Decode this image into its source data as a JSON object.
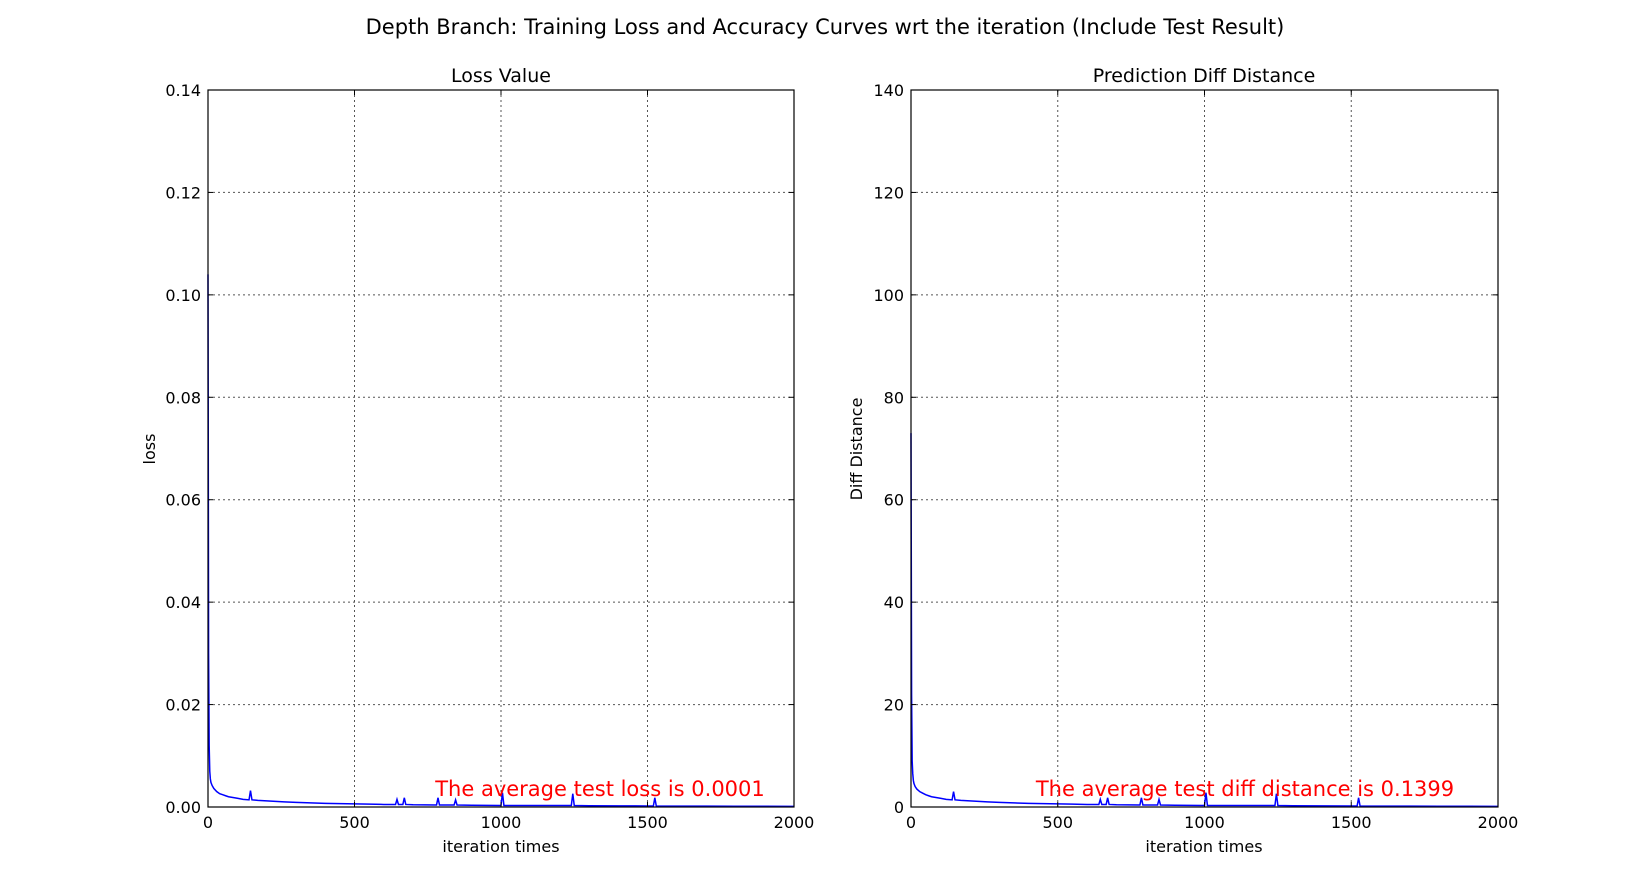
{
  "figure": {
    "suptitle": "Depth Branch: Training Loss and Accuracy Curves wrt the iteration (Include Test Result)"
  },
  "chart_data": [
    {
      "type": "line",
      "title": "Loss Value",
      "xlabel": "iteration times",
      "ylabel": "loss",
      "xlim": [
        0,
        2000
      ],
      "ylim": [
        0,
        0.14
      ],
      "xticks": [
        0,
        500,
        1000,
        1500,
        2000
      ],
      "xtick_labels": [
        "0",
        "500",
        "1000",
        "1500",
        "2000"
      ],
      "yticks": [
        0,
        0.02,
        0.04,
        0.06,
        0.08,
        0.1,
        0.12,
        0.14
      ],
      "ytick_labels": [
        "0.00",
        "0.02",
        "0.04",
        "0.06",
        "0.08",
        "0.10",
        "0.12",
        "0.14"
      ],
      "grid": true,
      "annotation": "The average test loss is 0.0001",
      "series": [
        {
          "color": "#0000ff",
          "x": [
            0,
            2,
            4,
            6,
            8,
            10,
            14,
            20,
            30,
            40,
            50,
            60,
            70,
            80,
            90,
            100,
            120,
            140,
            145,
            150,
            170,
            200,
            230,
            260,
            300,
            350,
            400,
            450,
            500,
            550,
            600,
            640,
            645,
            650,
            665,
            670,
            675,
            700,
            780,
            785,
            790,
            840,
            845,
            850,
            900,
            1000,
            1005,
            1010,
            1100,
            1200,
            1240,
            1245,
            1250,
            1300,
            1400,
            1500,
            1520,
            1525,
            1530,
            1600,
            1700,
            1800,
            1900,
            2000
          ],
          "y": [
            0.104,
            0.03,
            0.012,
            0.007,
            0.0055,
            0.0048,
            0.0042,
            0.0036,
            0.003,
            0.0026,
            0.0024,
            0.0022,
            0.002,
            0.0019,
            0.0018,
            0.0017,
            0.0015,
            0.0014,
            0.0032,
            0.0014,
            0.0013,
            0.0012,
            0.0011,
            0.001,
            0.0009,
            0.0008,
            0.0007,
            0.00065,
            0.0006,
            0.00055,
            0.0005,
            0.0005,
            0.0015,
            0.0005,
            0.0005,
            0.0018,
            0.0005,
            0.00045,
            0.0004,
            0.0018,
            0.0004,
            0.0004,
            0.0014,
            0.0004,
            0.00035,
            0.0003,
            0.0028,
            0.0003,
            0.0003,
            0.0003,
            0.0003,
            0.0026,
            0.0003,
            0.00025,
            0.00022,
            0.0002,
            0.0002,
            0.0018,
            0.0002,
            0.00018,
            0.00016,
            0.00015,
            0.00014,
            0.00013
          ]
        }
      ]
    },
    {
      "type": "line",
      "title": "Prediction Diff Distance",
      "xlabel": "iteration times",
      "ylabel": "Diff Distance",
      "xlim": [
        0,
        2000
      ],
      "ylim": [
        0,
        140
      ],
      "xticks": [
        0,
        500,
        1000,
        1500,
        2000
      ],
      "xtick_labels": [
        "0",
        "500",
        "1000",
        "1500",
        "2000"
      ],
      "yticks": [
        0,
        20,
        40,
        60,
        80,
        100,
        120,
        140
      ],
      "ytick_labels": [
        "0",
        "20",
        "40",
        "60",
        "80",
        "100",
        "120",
        "140"
      ],
      "grid": true,
      "annotation": "The average test diff distance is 0.1399",
      "series": [
        {
          "color": "#0000ff",
          "x": [
            0,
            2,
            4,
            6,
            8,
            10,
            14,
            20,
            30,
            40,
            50,
            60,
            70,
            80,
            90,
            100,
            120,
            140,
            145,
            150,
            170,
            200,
            230,
            260,
            300,
            350,
            400,
            450,
            500,
            550,
            600,
            640,
            645,
            650,
            665,
            670,
            675,
            700,
            780,
            785,
            790,
            840,
            845,
            850,
            900,
            1000,
            1005,
            1010,
            1100,
            1200,
            1240,
            1245,
            1250,
            1300,
            1400,
            1500,
            1520,
            1525,
            1530,
            1600,
            1700,
            1800,
            1900,
            2000
          ],
          "y": [
            73,
            22,
            9,
            6.5,
            5.2,
            4.6,
            4.0,
            3.5,
            3.0,
            2.7,
            2.4,
            2.2,
            2.0,
            1.9,
            1.8,
            1.7,
            1.5,
            1.4,
            3.0,
            1.4,
            1.3,
            1.2,
            1.1,
            1.0,
            0.9,
            0.8,
            0.7,
            0.65,
            0.6,
            0.55,
            0.5,
            0.5,
            1.5,
            0.5,
            0.5,
            1.8,
            0.5,
            0.45,
            0.4,
            1.8,
            0.4,
            0.4,
            1.5,
            0.4,
            0.35,
            0.3,
            2.8,
            0.3,
            0.3,
            0.3,
            0.3,
            2.6,
            0.3,
            0.25,
            0.22,
            0.2,
            0.2,
            1.8,
            0.2,
            0.18,
            0.16,
            0.15,
            0.14,
            0.13
          ]
        }
      ]
    }
  ]
}
